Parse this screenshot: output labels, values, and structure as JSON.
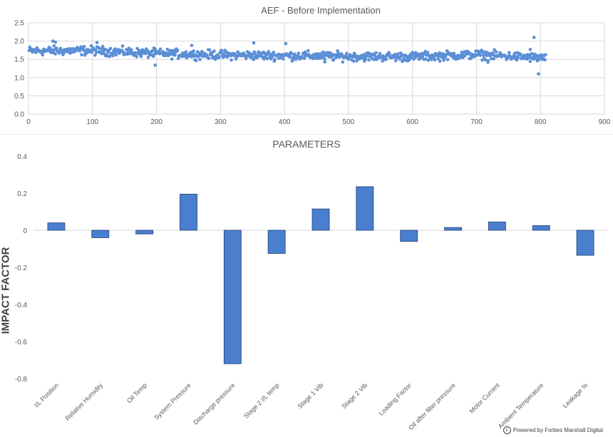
{
  "chart_data": [
    {
      "type": "scatter",
      "title": "AEF - Before Implementation",
      "xlabel": "",
      "ylabel": "",
      "xlim": [
        0,
        900
      ],
      "ylim": [
        0,
        2.5
      ],
      "x_ticks": [
        "0",
        "100",
        "200",
        "300",
        "400",
        "500",
        "600",
        "700",
        "800",
        "900"
      ],
      "y_ticks": [
        "0.0",
        "0.5",
        "1.0",
        "1.5",
        "2.0",
        "2.5"
      ],
      "color": "#5b8fd6",
      "n_points": 808,
      "trend_profile": [
        [
          0,
          1.73
        ],
        [
          100,
          1.74
        ],
        [
          200,
          1.66
        ],
        [
          300,
          1.62
        ],
        [
          400,
          1.6
        ],
        [
          500,
          1.58
        ],
        [
          600,
          1.57
        ],
        [
          700,
          1.63
        ],
        [
          800,
          1.54
        ]
      ],
      "outliers": [
        [
          38,
          2.0
        ],
        [
          42,
          1.97
        ],
        [
          107,
          1.96
        ],
        [
          198,
          1.34
        ],
        [
          255,
          1.88
        ],
        [
          352,
          1.95
        ],
        [
          402,
          1.93
        ],
        [
          463,
          1.43
        ],
        [
          790,
          2.1
        ],
        [
          797,
          1.1
        ],
        [
          784,
          1.77
        ],
        [
          718,
          1.42
        ]
      ]
    },
    {
      "type": "bar",
      "title": "PARAMETERS",
      "xlabel": "",
      "ylabel": "IMPACT FACTOR",
      "ylim": [
        -0.8,
        0.4
      ],
      "y_ticks": [
        "0.4",
        "0.2",
        "0",
        "-0.2",
        "-0.4",
        "-0.6",
        "-0.8"
      ],
      "categories": [
        "I/L Position",
        "Relative Humidity",
        "Oil Temp",
        "System Pressure",
        "Discharge pressure",
        "Stage 2 I/L temp",
        "Stage 1 Vib",
        "Stage 2 Vib",
        "Loading Factor",
        "Oil after filter pressure",
        "Motor Current",
        "Ambient Temperature",
        "Leakage %"
      ],
      "values": [
        0.04,
        -0.04,
        -0.02,
        0.195,
        -0.72,
        -0.125,
        0.115,
        0.235,
        -0.06,
        0.015,
        0.045,
        0.025,
        -0.135
      ],
      "color": "#4a7fd0"
    }
  ],
  "footer": {
    "icon": "copyright-icon",
    "text": "Powered by Forbes Marshall Digital"
  }
}
